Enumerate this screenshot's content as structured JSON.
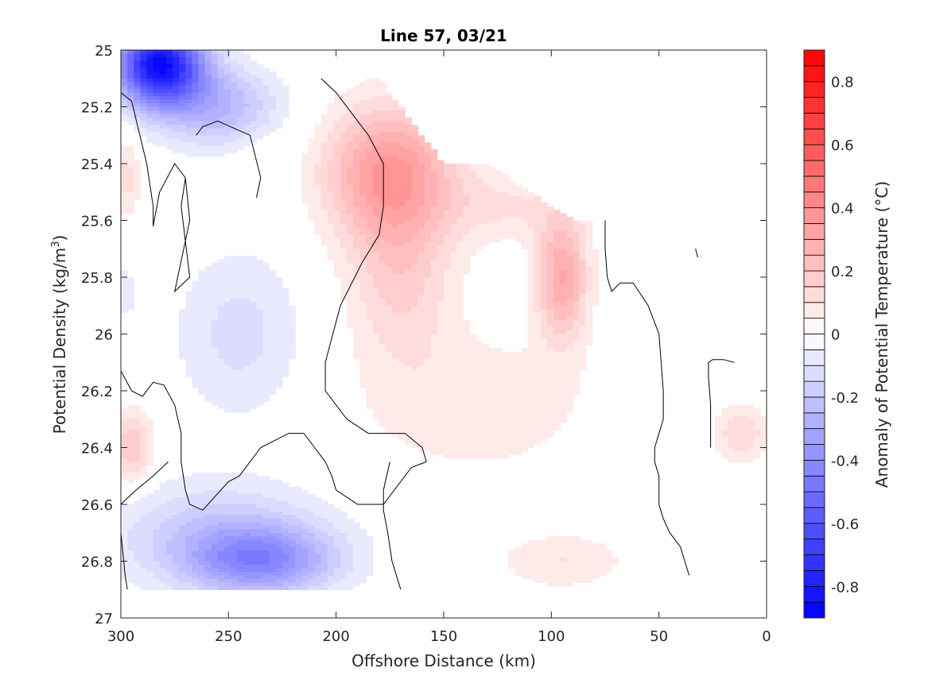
{
  "chart_data": {
    "type": "heatmap",
    "subtype": "filled-contour",
    "title": "Line 57, 03/21",
    "xlabel": "Offshore Distance (km)",
    "ylabel_main": "Potential Density (kg/m",
    "ylabel_sup": "3",
    "ylabel_close": ")",
    "colorbar_label": "Anomaly of Potential Temperature (°C)",
    "x_reversed": true,
    "xlim": [
      300,
      0
    ],
    "ylim": [
      25,
      27
    ],
    "y_reversed": true,
    "x_ticks": [
      300,
      250,
      200,
      150,
      100,
      50,
      0
    ],
    "x_tick_labels": [
      "300",
      "250",
      "200",
      "150",
      "100",
      "50",
      "0"
    ],
    "y_ticks": [
      25,
      25.2,
      25.4,
      25.6,
      25.8,
      26,
      26.2,
      26.4,
      26.6,
      26.8,
      27
    ],
    "y_tick_labels": [
      "25",
      "25.2",
      "25.4",
      "25.6",
      "25.8",
      "26",
      "26.2",
      "26.4",
      "26.6",
      "26.8",
      "27"
    ],
    "colorbar_range": [
      -0.9,
      0.9
    ],
    "colorbar_levels": 36,
    "colorbar_ticks": [
      0.8,
      0.6,
      0.4,
      0.2,
      0,
      -0.2,
      -0.4,
      -0.6,
      -0.8
    ],
    "colorbar_tick_labels": [
      "0.8",
      "0.6",
      "0.4",
      "0.2",
      "0",
      "-0.2",
      "-0.4",
      "-0.6",
      "-0.8"
    ],
    "colormap": {
      "negative": "#0000ff",
      "zero": "#ffffff",
      "positive": "#ff0000"
    },
    "data_extent": {
      "x_range": [
        300,
        0
      ],
      "top_density_by_distance": [
        [
          300,
          25
        ],
        [
          205,
          25
        ],
        [
          200,
          25.1
        ],
        [
          180,
          25.1
        ],
        [
          170,
          25.2
        ],
        [
          160,
          25.3
        ],
        [
          150,
          25.4
        ],
        [
          130,
          25.4
        ],
        [
          110,
          25.5
        ],
        [
          90,
          25.6
        ],
        [
          40,
          25.6
        ],
        [
          35,
          25.7
        ],
        [
          25,
          25.8
        ],
        [
          20,
          26
        ],
        [
          0,
          26.2
        ]
      ],
      "bottom_density": 26.9
    },
    "features": [
      {
        "label": "warm core",
        "x": 175,
        "y": 25.43,
        "value": 0.35,
        "sx": 30,
        "sy": 0.24
      },
      {
        "label": "warm",
        "x": 170,
        "y": 25.8,
        "value": 0.16,
        "sx": 25,
        "sy": 0.3
      },
      {
        "label": "warm",
        "x": 135,
        "y": 26.25,
        "value": 0.09,
        "sx": 55,
        "sy": 0.25
      },
      {
        "label": "warm",
        "x": 120,
        "y": 25.55,
        "value": 0.1,
        "sx": 30,
        "sy": 0.12
      },
      {
        "label": "warm core",
        "x": 95,
        "y": 25.8,
        "value": 0.3,
        "sx": 12,
        "sy": 0.22
      },
      {
        "label": "warm",
        "x": 95,
        "y": 26.8,
        "value": 0.1,
        "sx": 30,
        "sy": 0.1
      },
      {
        "label": "warm",
        "x": 295,
        "y": 26.4,
        "value": 0.2,
        "sx": 10,
        "sy": 0.13
      },
      {
        "label": "warm",
        "x": 297,
        "y": 25.45,
        "value": 0.12,
        "sx": 6,
        "sy": 0.15
      },
      {
        "label": "warm",
        "x": 235,
        "y": 25.4,
        "value": 0.05,
        "sx": 12,
        "sy": 0.1
      },
      {
        "label": "warm",
        "x": 12,
        "y": 26.35,
        "value": 0.15,
        "sx": 12,
        "sy": 0.1
      },
      {
        "label": "cold core",
        "x": 282,
        "y": 25.05,
        "value": -0.85,
        "sx": 20,
        "sy": 0.14
      },
      {
        "label": "cold",
        "x": 255,
        "y": 25.2,
        "value": -0.25,
        "sx": 28,
        "sy": 0.14
      },
      {
        "label": "cold core",
        "x": 235,
        "y": 26.8,
        "value": -0.35,
        "sx": 35,
        "sy": 0.12
      },
      {
        "label": "cold",
        "x": 255,
        "y": 26.7,
        "value": -0.18,
        "sx": 50,
        "sy": 0.18
      },
      {
        "label": "cold",
        "x": 245,
        "y": 26.0,
        "value": -0.12,
        "sx": 30,
        "sy": 0.3
      },
      {
        "label": "cold",
        "x": 298,
        "y": 25.85,
        "value": -0.06,
        "sx": 6,
        "sy": 0.15
      },
      {
        "label": "cold",
        "x": 50,
        "y": 25.6,
        "value": -0.05,
        "sx": 10,
        "sy": 0.05
      },
      {
        "label": "cold",
        "x": 28,
        "y": 25.9,
        "value": -0.05,
        "sx": 6,
        "sy": 0.1
      }
    ],
    "zero_contours": [
      [
        [
          300,
          25.15
        ],
        [
          295,
          25.18
        ],
        [
          288,
          25.4
        ],
        [
          285,
          25.55
        ],
        [
          285,
          25.62
        ]
      ],
      [
        [
          285,
          25.62
        ],
        [
          282,
          25.5
        ],
        [
          275,
          25.4
        ],
        [
          270,
          25.45
        ],
        [
          268,
          25.6
        ],
        [
          275,
          25.85
        ],
        [
          268,
          25.8
        ],
        [
          272,
          25.55
        ],
        [
          270,
          25.45
        ]
      ],
      [
        [
          207,
          25.1
        ],
        [
          200,
          25.15
        ],
        [
          185,
          25.3
        ],
        [
          178,
          25.4
        ],
        [
          178,
          25.55
        ]
      ],
      [
        [
          178,
          25.55
        ],
        [
          180,
          25.65
        ],
        [
          188,
          25.75
        ],
        [
          198,
          25.9
        ],
        [
          205,
          26.1
        ],
        [
          205,
          26.2
        ],
        [
          195,
          26.3
        ],
        [
          185,
          26.35
        ],
        [
          175,
          26.35
        ],
        [
          168,
          26.35
        ],
        [
          160,
          26.4
        ],
        [
          158,
          26.45
        ]
      ],
      [
        [
          237,
          25.52
        ],
        [
          235,
          25.45
        ],
        [
          240,
          25.3
        ],
        [
          255,
          25.25
        ],
        [
          262,
          25.27
        ],
        [
          265,
          25.3
        ]
      ],
      [
        [
          300,
          26.13
        ],
        [
          295,
          26.2
        ],
        [
          290,
          26.22
        ],
        [
          285,
          26.17
        ],
        [
          280,
          26.18
        ],
        [
          275,
          26.25
        ],
        [
          272,
          26.35
        ],
        [
          272,
          26.45
        ],
        [
          270,
          26.55
        ],
        [
          268,
          26.6
        ],
        [
          262,
          26.62
        ],
        [
          250,
          26.52
        ],
        [
          245,
          26.5
        ],
        [
          235,
          26.4
        ],
        [
          222,
          26.35
        ],
        [
          215,
          26.35
        ],
        [
          210,
          26.4
        ],
        [
          205,
          26.45
        ],
        [
          202,
          26.5
        ],
        [
          200,
          26.55
        ],
        [
          190,
          26.6
        ],
        [
          178,
          26.6
        ],
        [
          165,
          26.47
        ],
        [
          158,
          26.45
        ]
      ],
      [
        [
          300,
          26.6
        ],
        [
          293,
          26.55
        ],
        [
          285,
          26.5
        ],
        [
          278,
          26.45
        ]
      ],
      [
        [
          300,
          26.7
        ],
        [
          298,
          26.85
        ],
        [
          297,
          26.9
        ]
      ],
      [
        [
          175,
          26.45
        ],
        [
          178,
          26.55
        ],
        [
          178,
          26.62
        ],
        [
          176,
          26.7
        ],
        [
          174,
          26.8
        ],
        [
          170,
          26.9
        ]
      ],
      [
        [
          75,
          25.6
        ],
        [
          75,
          25.7
        ],
        [
          74,
          25.8
        ],
        [
          72,
          25.85
        ],
        [
          68,
          25.82
        ],
        [
          62,
          25.82
        ],
        [
          55,
          25.9
        ],
        [
          50,
          26.0
        ],
        [
          48,
          26.2
        ],
        [
          48,
          26.3
        ],
        [
          50,
          26.35
        ],
        [
          52,
          26.4
        ],
        [
          52,
          26.45
        ],
        [
          50,
          26.5
        ],
        [
          50,
          26.6
        ],
        [
          48,
          26.65
        ],
        [
          45,
          26.7
        ],
        [
          40,
          26.75
        ],
        [
          38,
          26.8
        ],
        [
          36,
          26.85
        ]
      ],
      [
        [
          33,
          25.7
        ],
        [
          32,
          25.73
        ]
      ],
      [
        [
          26,
          26.4
        ],
        [
          26,
          26.25
        ],
        [
          27,
          26.15
        ],
        [
          27,
          26.1
        ],
        [
          25,
          26.09
        ],
        [
          20,
          26.09
        ],
        [
          15,
          26.1
        ]
      ]
    ]
  }
}
